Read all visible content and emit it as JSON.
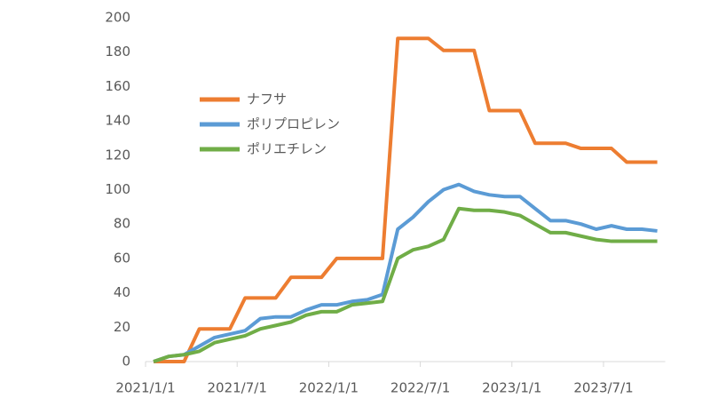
{
  "chart_data": {
    "type": "line",
    "categories": [
      "2021/1/1",
      null,
      null,
      null,
      null,
      null,
      "2021/7/1",
      null,
      null,
      null,
      null,
      null,
      "2022/1/1",
      null,
      null,
      null,
      null,
      null,
      "2022/7/1",
      null,
      null,
      null,
      null,
      null,
      "2023/1/1",
      null,
      null,
      null,
      null,
      null,
      "2023/7/1",
      null,
      null,
      null
    ],
    "series": [
      {
        "name": "ナフサ",
        "color": "#ed7d31",
        "values": [
          0,
          0,
          0,
          19,
          19,
          19,
          37,
          37,
          37,
          49,
          49,
          49,
          60,
          60,
          60,
          60,
          188,
          188,
          188,
          181,
          181,
          181,
          146,
          146,
          146,
          127,
          127,
          127,
          124,
          124,
          124,
          116,
          116,
          116
        ]
      },
      {
        "name": "ポリプロピレン",
        "color": "#5b9bd5",
        "values": [
          0,
          3,
          4,
          9,
          14,
          16,
          18,
          25,
          26,
          26,
          30,
          33,
          33,
          35,
          36,
          39,
          77,
          84,
          93,
          100,
          103,
          99,
          97,
          96,
          96,
          89,
          82,
          82,
          80,
          77,
          79,
          77,
          77,
          76
        ]
      },
      {
        "name": "ポリエチレン",
        "color": "#70ad47",
        "values": [
          0,
          3,
          4,
          6,
          11,
          13,
          15,
          19,
          21,
          23,
          27,
          29,
          29,
          33,
          34,
          35,
          60,
          65,
          67,
          71,
          89,
          88,
          88,
          87,
          85,
          80,
          75,
          75,
          73,
          71,
          70,
          70,
          70,
          70
        ]
      }
    ],
    "ylim": [
      0,
      200
    ],
    "yticks": [
      0,
      20,
      40,
      60,
      80,
      100,
      120,
      140,
      160,
      180,
      200
    ],
    "grid": false
  }
}
